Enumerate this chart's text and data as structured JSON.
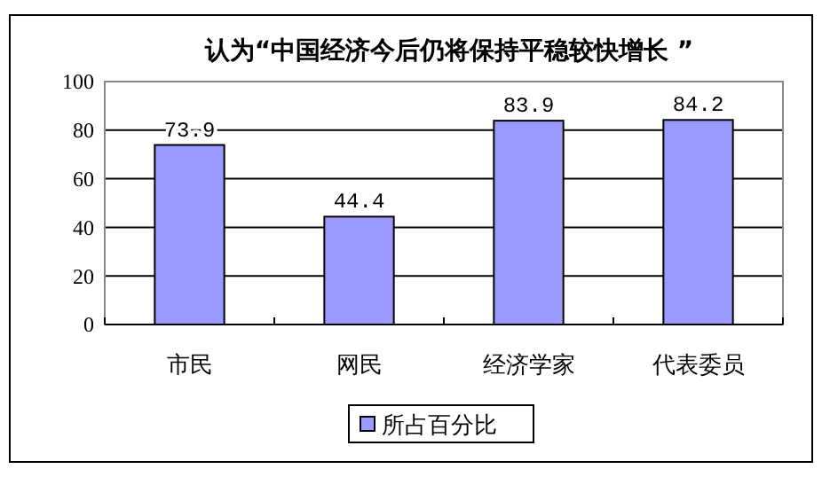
{
  "chart_data": {
    "type": "bar",
    "title": "认为“中国经济今后仍将保持平稳较快增长 ”",
    "categories": [
      "市民",
      "网民",
      "经济学家",
      "代表委员"
    ],
    "series": [
      {
        "name": "所占百分比",
        "color": "#9999ff",
        "values": [
          73.9,
          44.4,
          83.9,
          84.2
        ]
      }
    ],
    "ylim": [
      0,
      100
    ],
    "yticks": [
      0,
      20,
      40,
      60,
      80,
      100
    ],
    "grid": "y",
    "data_labels": true,
    "legend": "bottom"
  }
}
